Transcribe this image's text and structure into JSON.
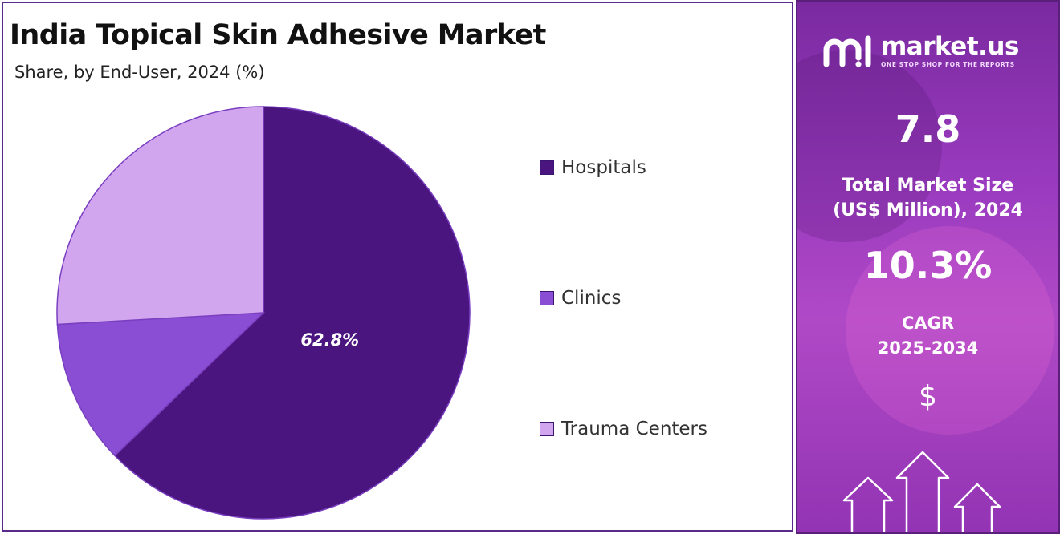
{
  "chart_data": {
    "type": "pie",
    "title": "India Topical Skin Adhesive Market",
    "subtitle": "Share, by End-User, 2024 (%)",
    "slices": [
      {
        "label": "Hospitals",
        "value": 62.8,
        "color": "#4b1580",
        "data_label": "62.8%"
      },
      {
        "label": "Clinics",
        "value": 11.3,
        "color": "#8a4ed4",
        "data_label": ""
      },
      {
        "label": "Trauma Centers",
        "value": 25.9,
        "color": "#d1a6ee",
        "data_label": ""
      }
    ],
    "legend_position": "right"
  },
  "legend": {
    "items": [
      {
        "label": "Hospitals",
        "color": "#4b1580"
      },
      {
        "label": "Clinics",
        "color": "#8a4ed4"
      },
      {
        "label": "Trauma Centers",
        "color": "#d1a6ee"
      }
    ]
  },
  "sidebar": {
    "logo_name": "market.us",
    "logo_tagline": "ONE STOP SHOP FOR THE REPORTS",
    "market_size_value": "7.8",
    "market_size_label_line1": "Total Market Size",
    "market_size_label_line2": "(US$ Million), 2024",
    "cagr_value": "10.3%",
    "cagr_label_line1": "CAGR",
    "cagr_label_line2": "2025-2034",
    "currency_symbol": "$",
    "icons": [
      "logo-icon",
      "dollar-icon",
      "growth-arrows-icon"
    ]
  }
}
